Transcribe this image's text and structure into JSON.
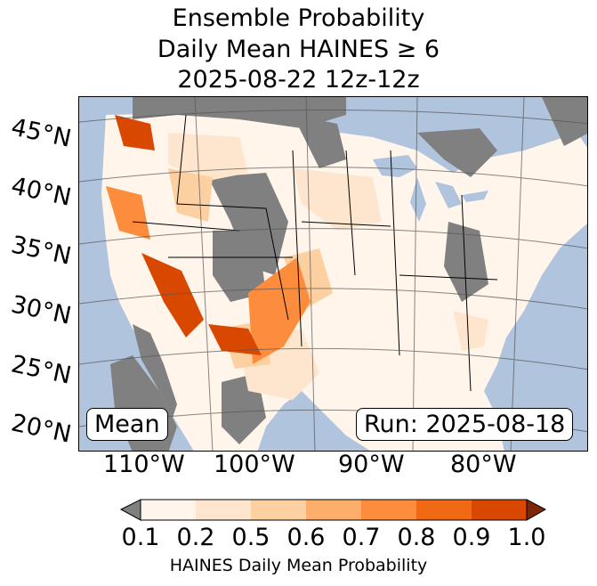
{
  "title": {
    "line1": "Ensemble Probability",
    "line2": "Daily Mean HAINES ≥ 6",
    "line3": "2025-08-22 12z-12z"
  },
  "map": {
    "ocean_color": "#b0c4de",
    "masked_color": "#808080",
    "lat_labels": [
      "45°N",
      "40°N",
      "35°N",
      "30°N",
      "25°N",
      "20°N"
    ],
    "lon_labels": [
      "110°W",
      "100°W",
      "90°W",
      "80°W"
    ],
    "mean_label": "Mean",
    "run_label": "Run: 2025-08-18"
  },
  "colorbar": {
    "label": "HAINES Daily Mean Probability",
    "ticks": [
      "0.1",
      "0.2",
      "0.5",
      "0.6",
      "0.7",
      "0.8",
      "0.9",
      "1.0"
    ],
    "under_color": "#808080",
    "over_color": "#7f2704",
    "colors": [
      "#fff5eb",
      "#fee6ce",
      "#fdd0a2",
      "#fdae6b",
      "#fd8d3c",
      "#f16913",
      "#d94801"
    ]
  }
}
